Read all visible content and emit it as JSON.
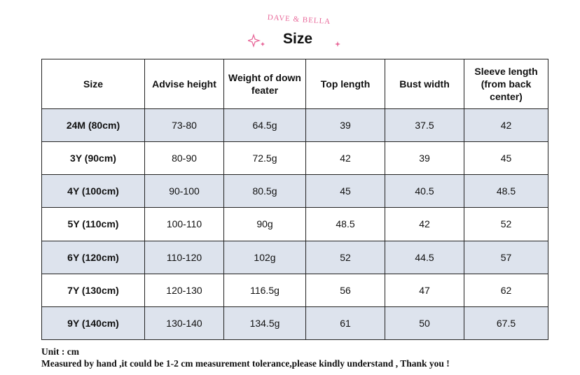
{
  "header": {
    "brand": "DAVE & BELLA",
    "title": "Size"
  },
  "colors": {
    "brand": "#e8699a",
    "row_shade": "#dde3ed",
    "border": "#222222"
  },
  "table": {
    "columns": [
      "Size",
      "Advise height",
      "Weight of down feater",
      "Top length",
      "Bust width",
      "Sleeve length (from back center)"
    ],
    "rows": [
      [
        "24M (80cm)",
        "73-80",
        "64.5g",
        "39",
        "37.5",
        "42"
      ],
      [
        "3Y (90cm)",
        "80-90",
        "72.5g",
        "42",
        "39",
        "45"
      ],
      [
        "4Y (100cm)",
        "90-100",
        "80.5g",
        "45",
        "40.5",
        "48.5"
      ],
      [
        "5Y (110cm)",
        "100-110",
        "90g",
        "48.5",
        "42",
        "52"
      ],
      [
        "6Y (120cm)",
        "110-120",
        "102g",
        "52",
        "44.5",
        "57"
      ],
      [
        "7Y (130cm)",
        "120-130",
        "116.5g",
        "56",
        "47",
        "62"
      ],
      [
        "9Y (140cm)",
        "130-140",
        "134.5g",
        "61",
        "50",
        "67.5"
      ]
    ]
  },
  "footnote": {
    "unit": "Unit : cm",
    "note": "Measured by hand ,it could be 1-2 cm measurement tolerance,please kindly understand , Thank you !"
  }
}
